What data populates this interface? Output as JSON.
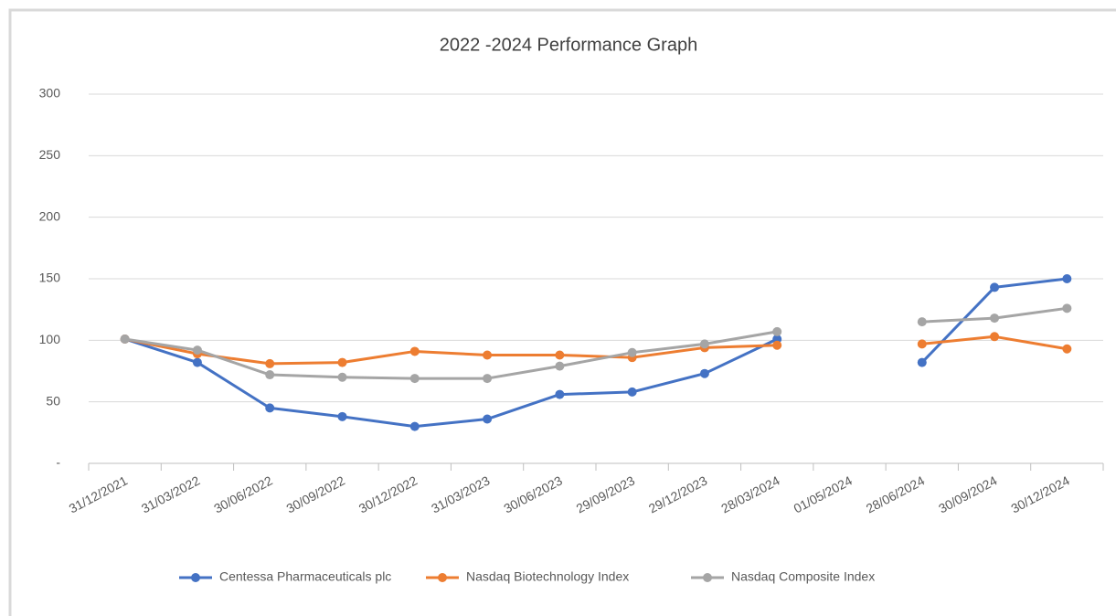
{
  "chart_data": {
    "type": "line",
    "title": "2022 -2024 Performance Graph",
    "categories": [
      "31/12/2021",
      "31/03/2022",
      "30/06/2022",
      "30/09/2022",
      "30/12/2022",
      "31/03/2023",
      "30/06/2023",
      "29/09/2023",
      "29/12/2023",
      "28/03/2024",
      "01/05/2024",
      "28/06/2024",
      "30/09/2024",
      "30/12/2024"
    ],
    "series": [
      {
        "name": "Centessa Pharmaceuticals plc",
        "color": "#4472c4",
        "values": [
          101,
          82,
          45,
          38,
          30,
          36,
          56,
          58,
          73,
          101,
          null,
          82,
          143,
          150
        ]
      },
      {
        "name": "Nasdaq Biotechnology Index",
        "color": "#ed7d31",
        "values": [
          101,
          89,
          81,
          82,
          91,
          88,
          88,
          86,
          94,
          96,
          null,
          97,
          103,
          93
        ]
      },
      {
        "name": "Nasdaq Composite Index",
        "color": "#a5a5a5",
        "values": [
          101,
          92,
          72,
          70,
          69,
          69,
          79,
          90,
          97,
          107,
          null,
          115,
          118,
          126
        ]
      }
    ],
    "ylim": [
      0,
      300
    ],
    "yticks": [
      {
        "value": 0,
        "label": "-"
      },
      50,
      100,
      150,
      200,
      250,
      300
    ],
    "grid": true,
    "legend": "bottom"
  }
}
